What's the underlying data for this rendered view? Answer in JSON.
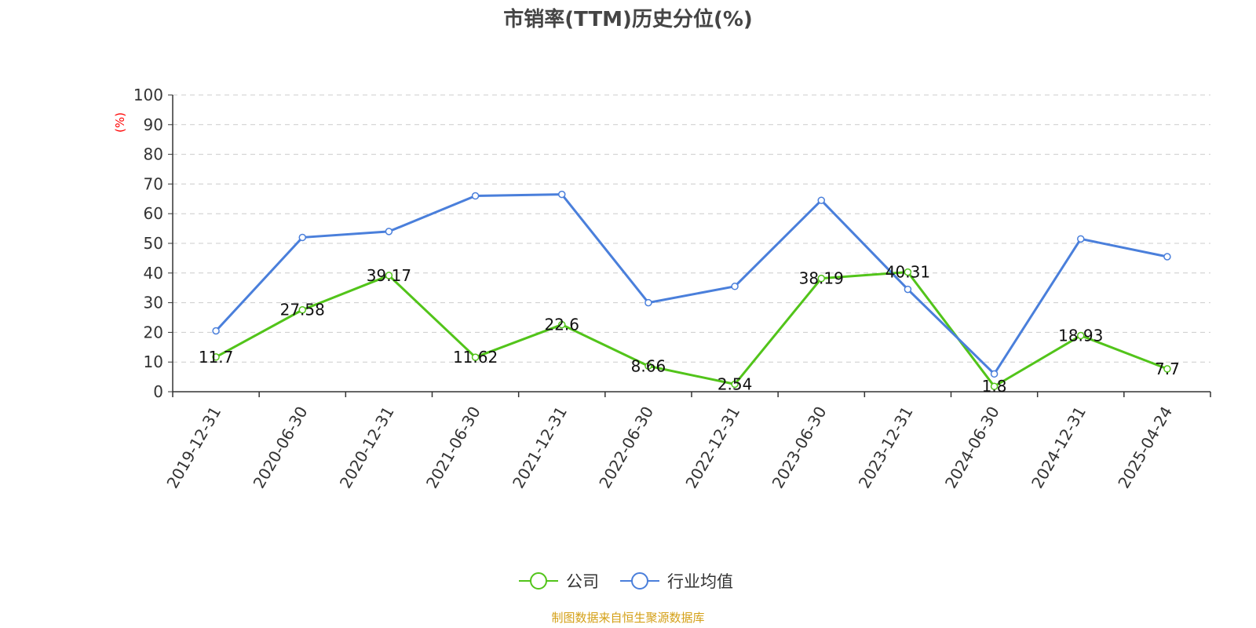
{
  "chart_data": {
    "type": "line",
    "title": "市销率(TTM)历史分位(%)",
    "ylabel": "(%)",
    "xlabel": "",
    "ylim": [
      0,
      100
    ],
    "yticks": [
      0,
      10,
      20,
      30,
      40,
      50,
      60,
      70,
      80,
      90,
      100
    ],
    "grid": true,
    "legend_position": "bottom",
    "categories": [
      "2019-12-31",
      "2020-06-30",
      "2020-12-31",
      "2021-06-30",
      "2021-12-31",
      "2022-06-30",
      "2022-12-31",
      "2023-06-30",
      "2023-12-31",
      "2024-06-30",
      "2024-12-31",
      "2025-04-24"
    ],
    "series": [
      {
        "name": "公司",
        "color": "#52c41a",
        "values": [
          11.7,
          27.58,
          39.17,
          11.62,
          22.6,
          8.66,
          2.54,
          38.19,
          40.31,
          1.8,
          18.93,
          7.7
        ],
        "labels": [
          "11.7",
          "27.58",
          "39.17",
          "11.62",
          "22.6",
          "8.66",
          "2.54",
          "38.19",
          "40.31",
          "1.8",
          "18.93",
          "7.7"
        ]
      },
      {
        "name": "行业均值",
        "color": "#4a7fdb",
        "values": [
          20.5,
          52.0,
          54.0,
          66.0,
          66.5,
          30.0,
          35.5,
          64.5,
          34.5,
          6.0,
          51.5,
          45.5
        ]
      }
    ],
    "source": "制图数据来自恒生聚源数据库"
  }
}
